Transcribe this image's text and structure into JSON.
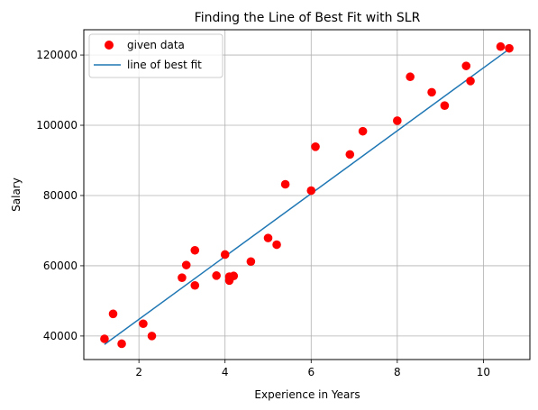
{
  "chart_data": {
    "type": "scatter",
    "title": "Finding the Line of Best Fit with SLR",
    "xlabel": "Experience in Years",
    "ylabel": "Salary",
    "xlim": [
      0.72,
      11.08
    ],
    "ylim": [
      33300,
      127200
    ],
    "xticks": [
      2,
      4,
      6,
      8,
      10
    ],
    "yticks": [
      40000,
      60000,
      80000,
      100000,
      120000
    ],
    "grid": true,
    "legend_position": "top-left",
    "series": [
      {
        "name": "given data",
        "kind": "scatter",
        "color": "#ff0000",
        "points": [
          {
            "x": 1.2,
            "y": 39200
          },
          {
            "x": 1.4,
            "y": 46300
          },
          {
            "x": 1.6,
            "y": 37800
          },
          {
            "x": 2.1,
            "y": 43500
          },
          {
            "x": 2.3,
            "y": 40000
          },
          {
            "x": 3.0,
            "y": 56600
          },
          {
            "x": 3.1,
            "y": 60200
          },
          {
            "x": 3.3,
            "y": 54400
          },
          {
            "x": 3.3,
            "y": 64400
          },
          {
            "x": 3.8,
            "y": 57200
          },
          {
            "x": 4.0,
            "y": 63200
          },
          {
            "x": 4.1,
            "y": 55800
          },
          {
            "x": 4.1,
            "y": 56900
          },
          {
            "x": 4.2,
            "y": 57100
          },
          {
            "x": 4.6,
            "y": 61200
          },
          {
            "x": 5.0,
            "y": 67900
          },
          {
            "x": 5.2,
            "y": 66000
          },
          {
            "x": 5.4,
            "y": 83200
          },
          {
            "x": 6.0,
            "y": 81400
          },
          {
            "x": 6.1,
            "y": 93900
          },
          {
            "x": 6.9,
            "y": 91700
          },
          {
            "x": 7.2,
            "y": 98300
          },
          {
            "x": 8.0,
            "y": 101300
          },
          {
            "x": 8.3,
            "y": 113800
          },
          {
            "x": 8.8,
            "y": 109400
          },
          {
            "x": 9.1,
            "y": 105600
          },
          {
            "x": 9.6,
            "y": 116900
          },
          {
            "x": 9.7,
            "y": 112600
          },
          {
            "x": 10.4,
            "y": 122400
          },
          {
            "x": 10.6,
            "y": 121900
          }
        ]
      },
      {
        "name": "line of best fit",
        "kind": "line",
        "color": "#1f77b4",
        "points": [
          {
            "x": 1.2,
            "y": 37600
          },
          {
            "x": 10.6,
            "y": 121700
          }
        ]
      }
    ]
  }
}
